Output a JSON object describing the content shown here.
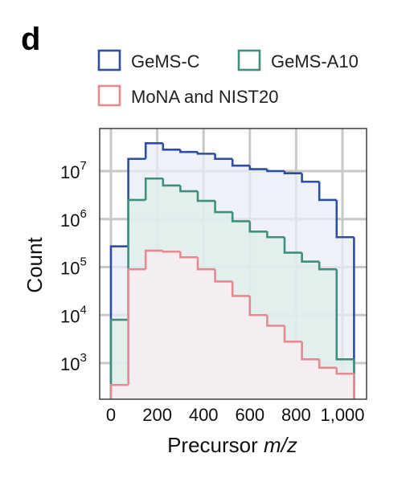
{
  "panel_label": "d",
  "chart_data": {
    "type": "histogram",
    "title": "",
    "xlabel_prefix": "Precursor ",
    "xlabel_italic": "m/z",
    "ylabel": "Count",
    "yscale": "log",
    "xlim": [
      -20,
      1080
    ],
    "ylim": [
      200,
      100000000
    ],
    "x_ticks": [
      0,
      200,
      400,
      600,
      800,
      1000
    ],
    "x_tick_labels": [
      "0",
      "200",
      "400",
      "600",
      "800",
      "1,000"
    ],
    "y_ticks": [
      1000,
      10000,
      100000,
      1000000,
      10000000
    ],
    "y_tick_labels": [
      {
        "base": "10",
        "exp": "3"
      },
      {
        "base": "10",
        "exp": "4"
      },
      {
        "base": "10",
        "exp": "5"
      },
      {
        "base": "10",
        "exp": "6"
      },
      {
        "base": "10",
        "exp": "7"
      }
    ],
    "grid": true,
    "legend_position": "top",
    "bin_edges": [
      0,
      75,
      150,
      225,
      300,
      375,
      450,
      525,
      600,
      675,
      750,
      825,
      900,
      975,
      1050
    ],
    "series": [
      {
        "name": "GeMS-C",
        "color": "#2f4ea0",
        "fill": "#e8edf6",
        "values": [
          270000,
          18000000,
          38000000,
          28000000,
          25000000,
          23000000,
          18000000,
          13000000,
          11000000,
          10000000,
          9000000,
          6000000,
          2500000,
          420000
        ]
      },
      {
        "name": "GeMS-A10",
        "color": "#3f8f7c",
        "fill": "#dfeee9",
        "values": [
          8000,
          2500000,
          7000000,
          5000000,
          3800000,
          2400000,
          1400000,
          900000,
          550000,
          420000,
          200000,
          130000,
          90000,
          1200
        ]
      },
      {
        "name": "MoNA and NIST20",
        "color": "#e48a94",
        "fill": "#fbeef0",
        "values": [
          350,
          90000,
          220000,
          210000,
          160000,
          90000,
          50000,
          25000,
          10000,
          6000,
          2800,
          1200,
          800,
          600
        ]
      }
    ]
  }
}
